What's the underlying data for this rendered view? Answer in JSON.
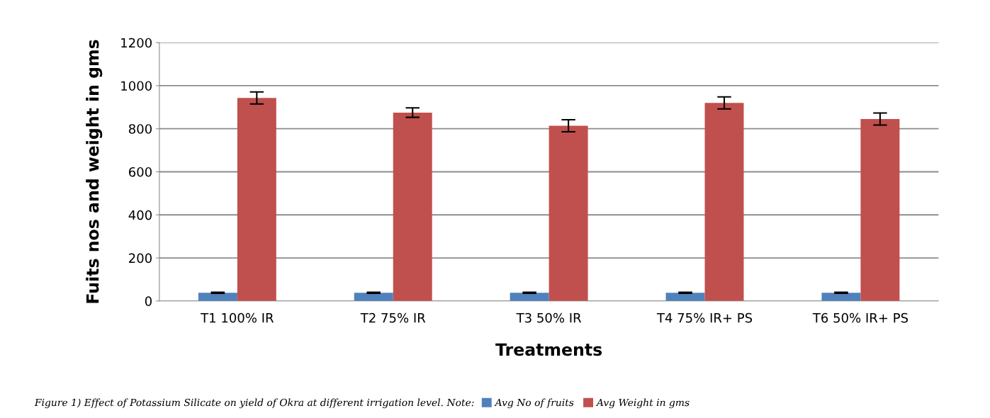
{
  "chart_data": {
    "type": "bar",
    "xlabel": "Treatments",
    "ylabel": "Fuits nos and weight in gms",
    "categories": [
      "T1 100% IR",
      "T2 75% IR",
      "T3 50% IR",
      "T4 75% IR+ PS",
      "T6 50% IR+ PS"
    ],
    "series": [
      {
        "name": "Avg No of fruits",
        "color": "#4f81bd",
        "values": [
          38,
          38,
          38,
          38,
          38
        ],
        "errors": [
          2,
          2,
          2,
          2,
          2
        ]
      },
      {
        "name": "Avg Weight in gms",
        "color": "#c0504d",
        "values": [
          943,
          875,
          814,
          920,
          845
        ],
        "errors": [
          28,
          22,
          28,
          28,
          28
        ]
      }
    ],
    "ylim": [
      0,
      1200
    ],
    "yticks": [
      0,
      200,
      400,
      600,
      800,
      1000,
      1200
    ],
    "grid": "y",
    "legend": "bottom",
    "annotations": [
      "Figure 1) Effect of Potassium Silicate on yield of Okra at different irrigation level. Note:"
    ]
  }
}
